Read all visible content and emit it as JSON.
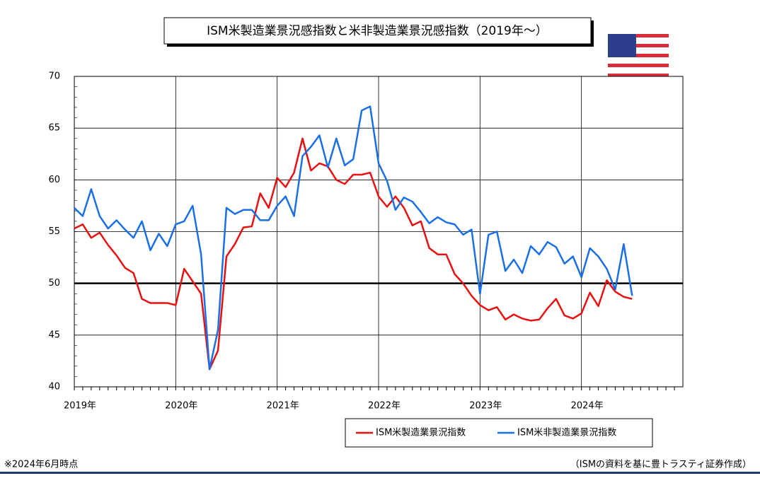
{
  "chart_data": {
    "type": "line",
    "title": "ISM米製造業景況感指数と米非製造業景況感指数（2019年～）",
    "note": "※2024年6月時点",
    "source": "（ISMの資料を基に豊トラスティ証券作成）",
    "categories": [
      "2019年",
      null,
      null,
      null,
      null,
      null,
      null,
      null,
      null,
      null,
      null,
      null,
      "2020年",
      null,
      null,
      null,
      null,
      null,
      null,
      null,
      null,
      null,
      null,
      null,
      "2021年",
      null,
      null,
      null,
      null,
      null,
      null,
      null,
      null,
      null,
      null,
      null,
      "2022年",
      null,
      null,
      null,
      null,
      null,
      null,
      null,
      null,
      null,
      null,
      null,
      "2023年",
      null,
      null,
      null,
      null,
      null,
      null,
      null,
      null,
      null,
      null,
      null,
      "2024年",
      null,
      null,
      null,
      null,
      null,
      null,
      null,
      null,
      null,
      null,
      null
    ],
    "series": [
      {
        "name": "ISM米製造業景況指数",
        "color": "#e81010",
        "values": [
          55.3,
          55.7,
          54.4,
          54.9,
          53.7,
          52.7,
          51.5,
          51.0,
          48.5,
          48.1,
          48.1,
          48.1,
          47.9,
          51.4,
          50.2,
          49.0,
          41.7,
          43.5,
          52.6,
          53.8,
          55.4,
          55.5,
          58.7,
          57.3,
          60.2,
          59.3,
          60.7,
          64.0,
          60.9,
          61.6,
          61.3,
          60.0,
          59.6,
          60.5,
          60.5,
          60.7,
          58.4,
          57.4,
          58.4,
          57.3,
          55.6,
          56.0,
          53.4,
          52.8,
          52.8,
          50.9,
          50.0,
          48.8,
          47.9,
          47.4,
          47.7,
          46.5,
          47.0,
          46.6,
          46.4,
          46.5,
          47.6,
          48.5,
          46.9,
          46.6,
          47.1,
          49.1,
          47.8,
          50.3,
          49.2,
          48.7,
          48.5,
          null,
          null,
          null,
          null,
          null
        ]
      },
      {
        "name": "ISM米非製造業景況指数",
        "color": "#1a6fe8",
        "values": [
          57.3,
          56.5,
          59.1,
          56.5,
          55.3,
          56.1,
          55.2,
          54.4,
          56.0,
          53.2,
          54.8,
          53.6,
          55.7,
          56.0,
          57.5,
          52.8,
          41.7,
          45.5,
          57.3,
          56.7,
          57.1,
          57.1,
          56.1,
          56.1,
          57.5,
          58.4,
          56.5,
          62.3,
          63.2,
          64.3,
          61.2,
          64.0,
          61.4,
          62.0,
          66.7,
          67.1,
          61.6,
          59.9,
          57.1,
          58.3,
          57.9,
          56.9,
          55.8,
          56.4,
          55.9,
          55.7,
          54.7,
          55.2,
          49.0,
          54.7,
          55.0,
          51.2,
          52.3,
          51.0,
          53.6,
          52.8,
          54.0,
          53.5,
          51.9,
          52.6,
          50.6,
          53.4,
          52.6,
          51.4,
          49.4,
          53.8,
          48.8,
          null,
          null,
          null,
          null,
          null
        ]
      }
    ],
    "ylim": [
      40,
      70
    ],
    "yticks": [
      40,
      45,
      50,
      55,
      60,
      65,
      70
    ],
    "grid": true,
    "hline": 50
  }
}
